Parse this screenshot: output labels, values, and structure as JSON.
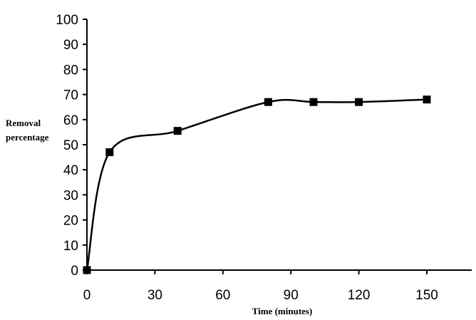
{
  "chart_data": {
    "type": "line",
    "title": "",
    "xlabel": "Time (minutes)",
    "ylabel_lines": [
      "Removal",
      "percentage"
    ],
    "x_ticks": [
      "0",
      "30",
      "60",
      "90",
      "120",
      "150"
    ],
    "y_ticks": [
      "0",
      "10",
      "20",
      "30",
      "40",
      "50",
      "60",
      "70",
      "80",
      "90",
      "100"
    ],
    "xlim": [
      0,
      170
    ],
    "ylim": [
      0,
      100
    ],
    "grid": false,
    "smoothed": true,
    "marker": "square",
    "line_color": "#000000",
    "series": [
      {
        "x": [
          0,
          10,
          40,
          80,
          100,
          120,
          150
        ],
        "y": [
          0,
          47,
          55.5,
          67,
          67,
          67,
          68
        ]
      }
    ]
  }
}
